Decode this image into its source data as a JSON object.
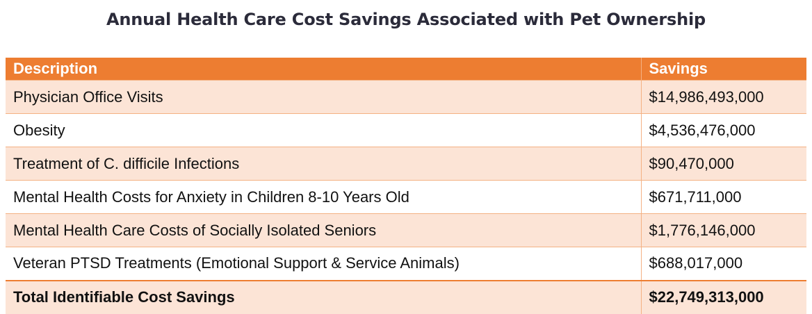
{
  "title": "Annual Health Care Cost Savings Associated with Pet Ownership",
  "table": {
    "headers": {
      "description": "Description",
      "savings": "Savings"
    },
    "rows": [
      {
        "description": "Physician Office Visits",
        "savings": "$14,986,493,000"
      },
      {
        "description": "Obesity",
        "savings": "$4,536,476,000"
      },
      {
        "description": "Treatment of C. difficile Infections",
        "savings": "$90,470,000"
      },
      {
        "description": "Mental Health Costs for Anxiety in Children 8-10 Years Old",
        "savings": "$671,711,000"
      },
      {
        "description": "Mental Health Care Costs of Socially Isolated Seniors",
        "savings": "$1,776,146,000"
      },
      {
        "description": "Veteran PTSD Treatments (Emotional Support & Service Animals)",
        "savings": "$688,017,000"
      }
    ],
    "total": {
      "description": "Total Identifiable Cost Savings",
      "savings": "$22,749,313,000"
    }
  },
  "colors": {
    "header": "#ED7D31",
    "shaded_row": "#FCE4D6",
    "border": "#F4B183"
  }
}
